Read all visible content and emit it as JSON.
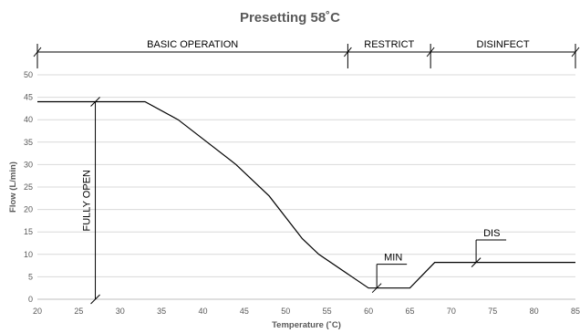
{
  "chart_data": {
    "type": "line",
    "title": "Presetting 58˚C",
    "xlabel": "Temperature (˚C)",
    "ylabel": "Flow (L/min)",
    "xlim": [
      20,
      85
    ],
    "ylim": [
      0,
      50
    ],
    "x_ticks": [
      "20",
      "25",
      "30",
      "35",
      "40",
      "45",
      "50",
      "55",
      "60",
      "65",
      "70",
      "75",
      "80",
      "85"
    ],
    "y_ticks": [
      "0",
      "5",
      "10",
      "15",
      "20",
      "25",
      "30",
      "35",
      "40",
      "45",
      "50"
    ],
    "grid": true,
    "series": [
      {
        "x": [
          20,
          33,
          37,
          44,
          48,
          52,
          54,
          60,
          65,
          68,
          85
        ],
        "y": [
          44,
          44,
          40,
          30,
          23,
          13.5,
          10,
          2.5,
          2.5,
          8.2,
          8.2
        ]
      }
    ],
    "regions": [
      {
        "label": "BASIC OPERATION",
        "x_start": 20,
        "x_end": 57.5
      },
      {
        "label": "RESTRICT",
        "x_start": 57.5,
        "x_end": 67.5
      },
      {
        "label": "DISINFECT",
        "x_start": 67.5,
        "x_end": 85
      }
    ],
    "annotations": [
      {
        "text": "FULLY OPEN",
        "x": 27,
        "y_from": 0,
        "y_to": 44
      },
      {
        "text": "MIN",
        "x": 61,
        "y": 2.5,
        "label_y": 7.8
      },
      {
        "text": "DIS",
        "x": 73,
        "y": 8.2,
        "label_y": 13.2
      }
    ]
  }
}
